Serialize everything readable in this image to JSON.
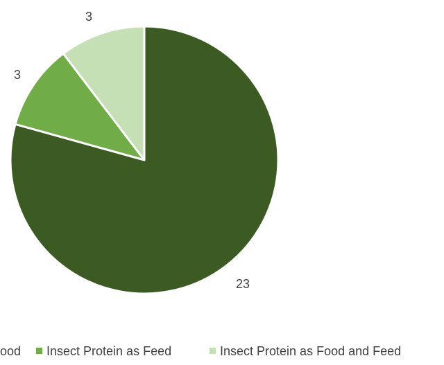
{
  "chart_data": {
    "type": "pie",
    "title": "",
    "start_angle_deg": 0,
    "direction": "clockwise",
    "slices": [
      {
        "label": "Insect Protein as Food",
        "value": 23,
        "color": "#3b5b23"
      },
      {
        "label": "Insect Protein as Feed",
        "value": 3,
        "color": "#70ad47"
      },
      {
        "label": "Insect Protein as Food and Feed",
        "value": 3,
        "color": "#c5e0b4"
      }
    ],
    "data_labels": [
      "23",
      "3",
      "3"
    ],
    "legend": {
      "position": "bottom",
      "entries": [
        "Insect Protein as Food",
        "Insect Protein as Feed",
        "Insect Protein as Food and Feed"
      ],
      "visible_text": [
        "ood",
        "Insect Protein as Feed",
        "Insect Protein as Food and Feed"
      ]
    }
  }
}
